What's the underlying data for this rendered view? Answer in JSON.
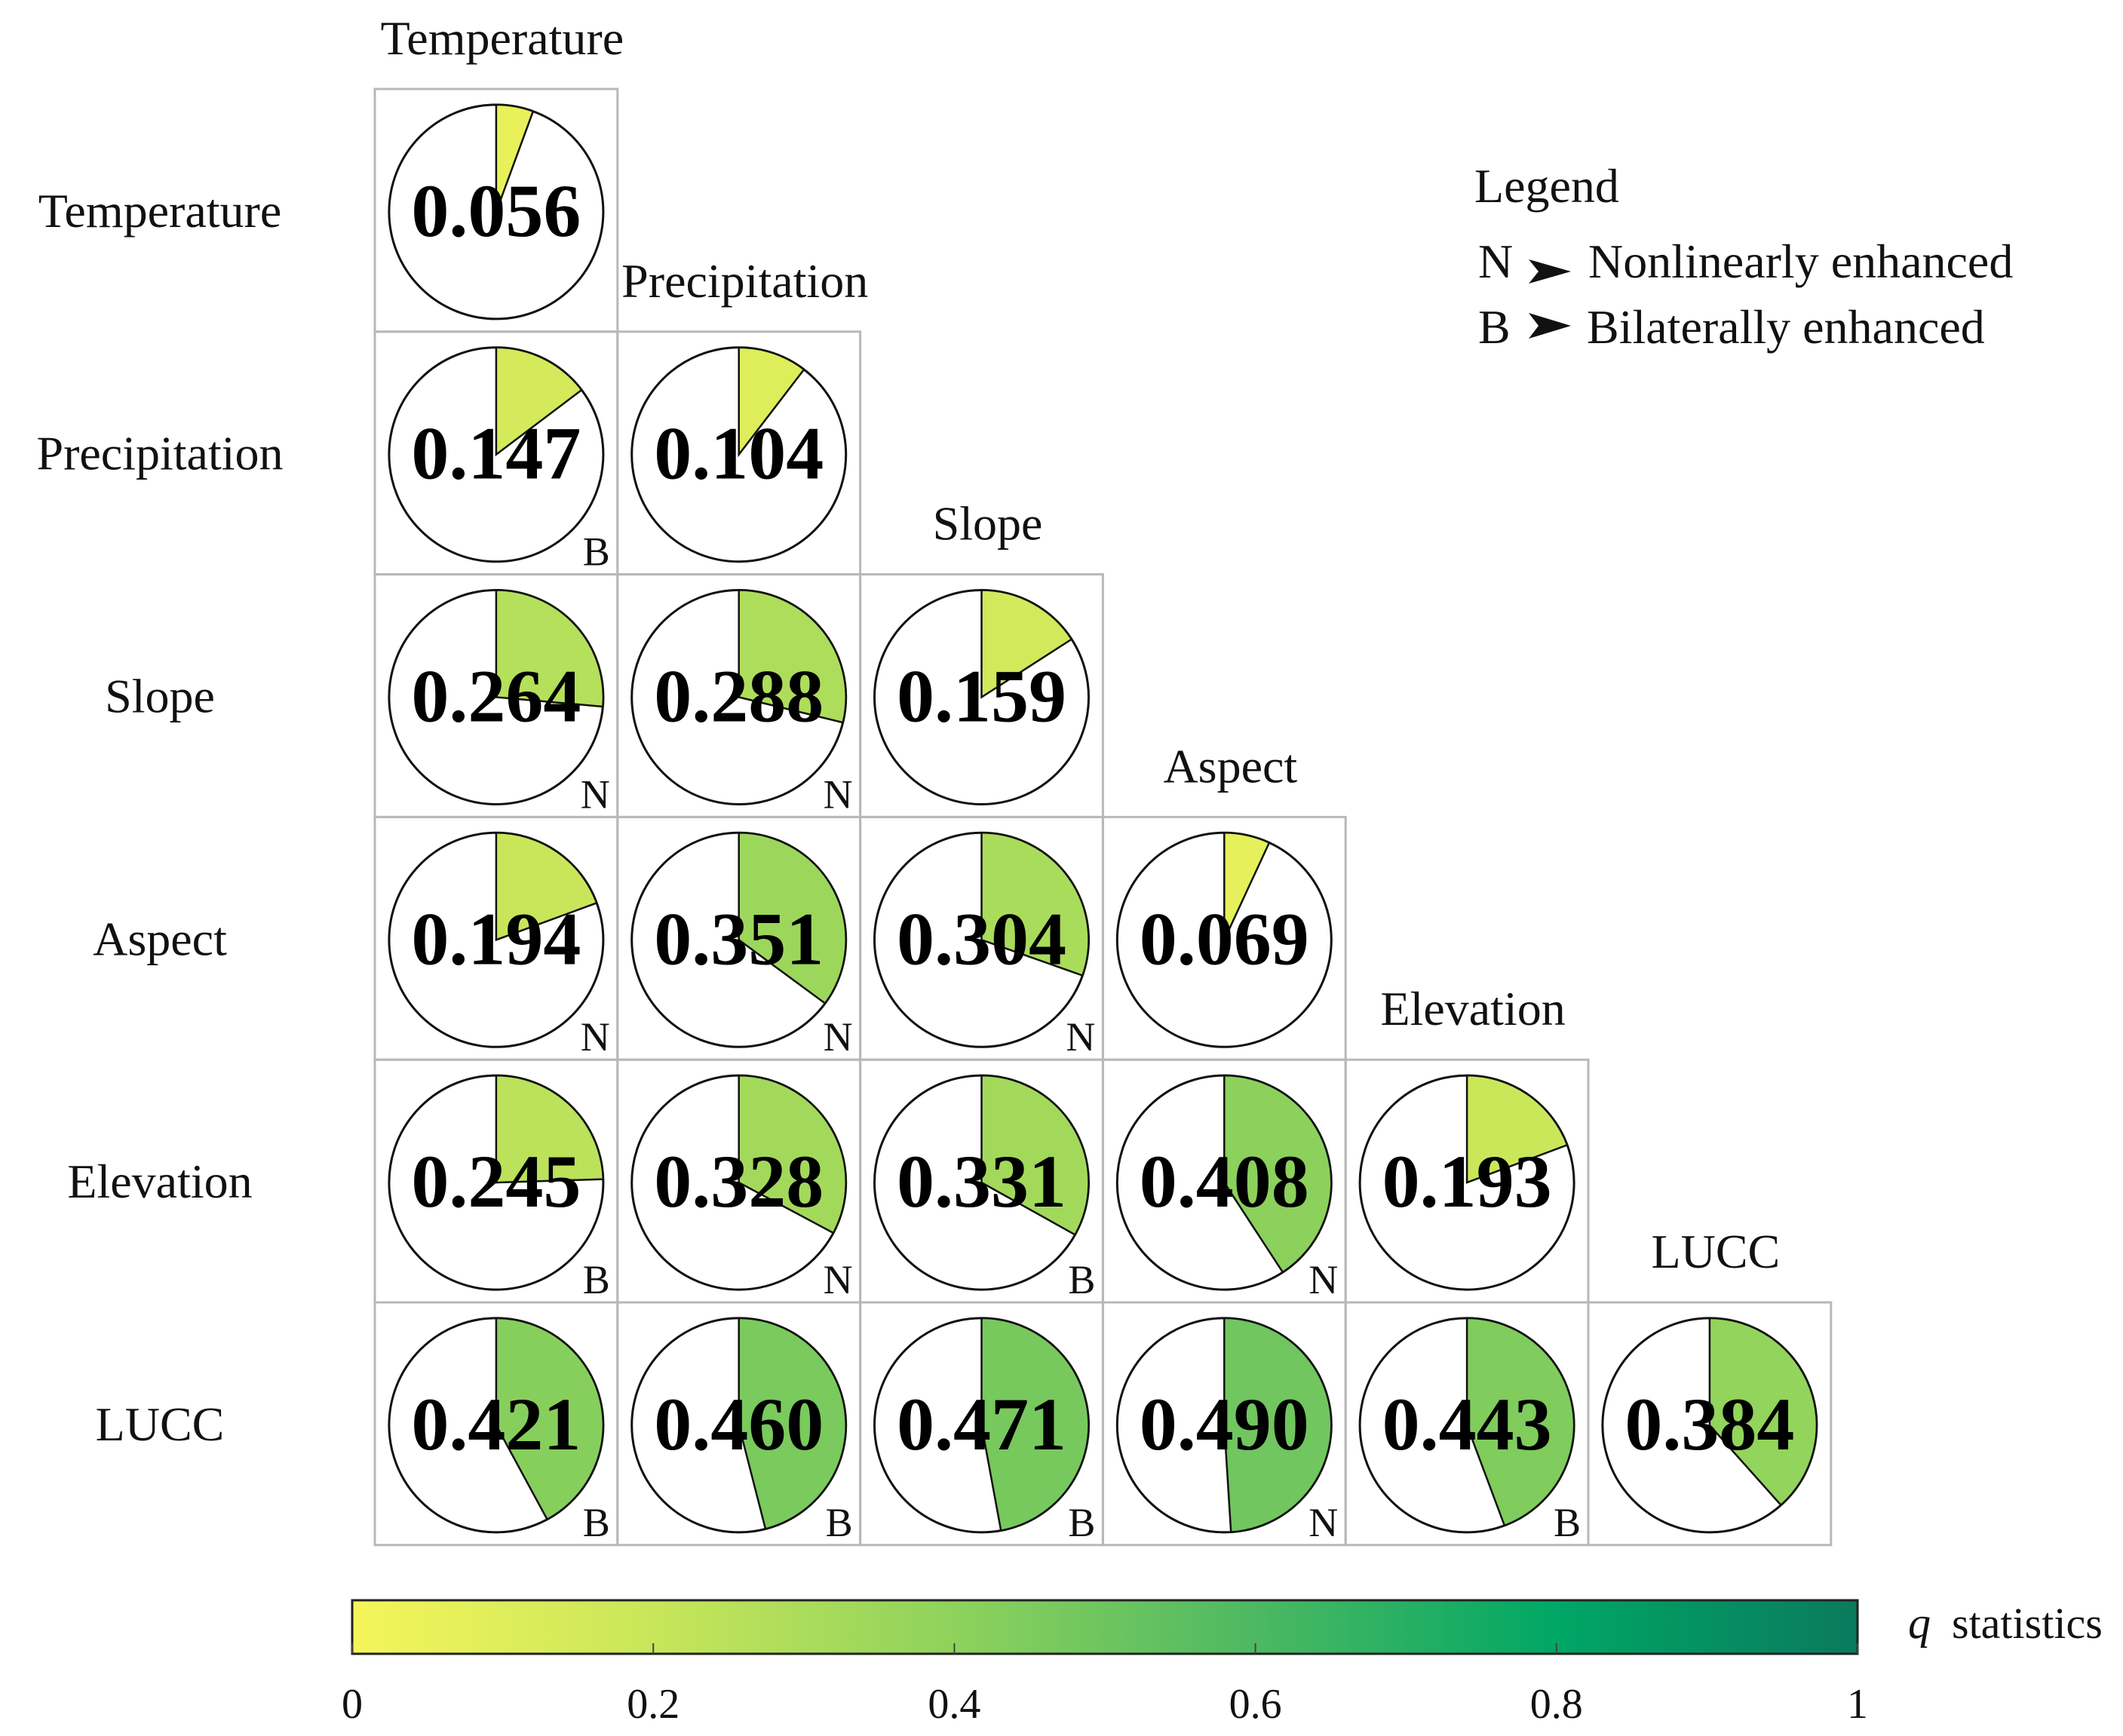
{
  "chart_data": {
    "type": "pie-matrix",
    "variables": [
      "Temperature",
      "Precipitation",
      "Slope",
      "Aspect",
      "Elevation",
      "LUCC"
    ],
    "cells": [
      {
        "row": "Temperature",
        "col": "Temperature",
        "value": 0.056,
        "label": "0.056",
        "mark": ""
      },
      {
        "row": "Precipitation",
        "col": "Temperature",
        "value": 0.147,
        "label": "0.147",
        "mark": "B"
      },
      {
        "row": "Precipitation",
        "col": "Precipitation",
        "value": 0.104,
        "label": "0.104",
        "mark": ""
      },
      {
        "row": "Slope",
        "col": "Temperature",
        "value": 0.264,
        "label": "0.264",
        "mark": "N"
      },
      {
        "row": "Slope",
        "col": "Precipitation",
        "value": 0.288,
        "label": "0.288",
        "mark": "N"
      },
      {
        "row": "Slope",
        "col": "Slope",
        "value": 0.159,
        "label": "0.159",
        "mark": ""
      },
      {
        "row": "Aspect",
        "col": "Temperature",
        "value": 0.194,
        "label": "0.194",
        "mark": "N"
      },
      {
        "row": "Aspect",
        "col": "Precipitation",
        "value": 0.351,
        "label": "0.351",
        "mark": "N"
      },
      {
        "row": "Aspect",
        "col": "Slope",
        "value": 0.304,
        "label": "0.304",
        "mark": "N"
      },
      {
        "row": "Aspect",
        "col": "Aspect",
        "value": 0.069,
        "label": "0.069",
        "mark": ""
      },
      {
        "row": "Elevation",
        "col": "Temperature",
        "value": 0.245,
        "label": "0.245",
        "mark": "B"
      },
      {
        "row": "Elevation",
        "col": "Precipitation",
        "value": 0.328,
        "label": "0.328",
        "mark": "N"
      },
      {
        "row": "Elevation",
        "col": "Slope",
        "value": 0.331,
        "label": "0.331",
        "mark": "B"
      },
      {
        "row": "Elevation",
        "col": "Aspect",
        "value": 0.408,
        "label": "0.408",
        "mark": "N"
      },
      {
        "row": "Elevation",
        "col": "Elevation",
        "value": 0.193,
        "label": "0.193",
        "mark": ""
      },
      {
        "row": "LUCC",
        "col": "Temperature",
        "value": 0.421,
        "label": "0.421",
        "mark": "B"
      },
      {
        "row": "LUCC",
        "col": "Precipitation",
        "value": 0.46,
        "label": "0.460",
        "mark": "B"
      },
      {
        "row": "LUCC",
        "col": "Slope",
        "value": 0.471,
        "label": "0.471",
        "mark": "B"
      },
      {
        "row": "LUCC",
        "col": "Aspect",
        "value": 0.49,
        "label": "0.490",
        "mark": "N"
      },
      {
        "row": "LUCC",
        "col": "Elevation",
        "value": 0.443,
        "label": "0.443",
        "mark": "B"
      },
      {
        "row": "LUCC",
        "col": "LUCC",
        "value": 0.384,
        "label": "0.384",
        "mark": ""
      }
    ],
    "legend": {
      "title": "Legend",
      "items": [
        {
          "symbol": "N",
          "text": "Nonlinearly enhanced"
        },
        {
          "symbol": "B",
          "text": "Bilaterally enhanced"
        }
      ],
      "placement": "top-right"
    },
    "colorbar": {
      "label_italic": "q",
      "label": "statistics",
      "range": [
        0,
        1
      ],
      "ticks": [
        0,
        0.2,
        0.4,
        0.6,
        0.8,
        1
      ],
      "tick_labels": [
        "0",
        "0.2",
        "0.4",
        "0.6",
        "0.8",
        "1"
      ],
      "colors": [
        "#f5f55a",
        "#c8e65a",
        "#8ed25c",
        "#4db862",
        "#00a765",
        "#0a7a5e"
      ]
    }
  }
}
